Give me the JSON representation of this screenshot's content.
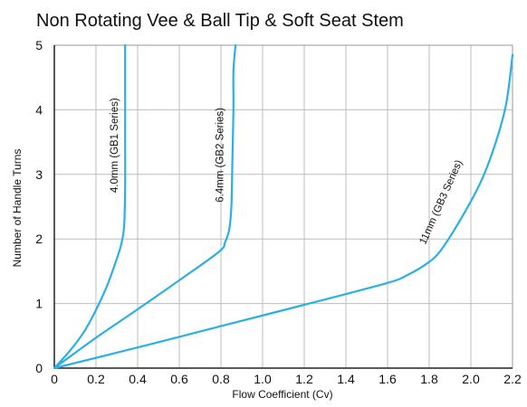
{
  "chart_data": {
    "type": "line",
    "title": "Non Rotating Vee & Ball Tip & Soft Seat Stem",
    "xlabel": "Flow Coefficient (Cv)",
    "ylabel": "Number of Handle Turns",
    "xlim": [
      0,
      2.2
    ],
    "ylim": [
      0,
      5
    ],
    "xticks": [
      "0",
      "0.2",
      "0.4",
      "0.6",
      "0.8",
      "1.0",
      "1.2",
      "1.4",
      "1.6",
      "1.8",
      "2.0",
      "2.2"
    ],
    "yticks": [
      "0",
      "1",
      "2",
      "3",
      "4",
      "5"
    ],
    "grid": true,
    "series_color": "#2bb0e4",
    "series": [
      {
        "name": "4.0mm (GB1 Series)",
        "x": [
          0,
          0.07,
          0.14,
          0.2,
          0.25,
          0.29,
          0.32,
          0.335,
          0.34,
          0.34,
          0.34,
          0.34
        ],
        "y": [
          0,
          0.25,
          0.55,
          0.9,
          1.25,
          1.6,
          1.9,
          2.2,
          2.8,
          3.5,
          4.2,
          5.0
        ]
      },
      {
        "name": "6.4mm (GB2 Series)",
        "x": [
          0,
          0.2,
          0.4,
          0.6,
          0.79,
          0.82,
          0.84,
          0.85,
          0.855,
          0.86,
          0.86,
          0.87
        ],
        "y": [
          0,
          0.47,
          0.91,
          1.36,
          1.8,
          1.95,
          2.15,
          2.5,
          3.2,
          4.0,
          4.6,
          5.0
        ]
      },
      {
        "name": "11mm (GB3 Series)",
        "x": [
          0,
          0.4,
          0.8,
          1.2,
          1.6,
          1.7,
          1.78,
          1.85,
          1.95,
          2.05,
          2.12,
          2.17,
          2.2
        ],
        "y": [
          0,
          0.32,
          0.65,
          0.98,
          1.32,
          1.45,
          1.6,
          1.8,
          2.3,
          2.9,
          3.5,
          4.1,
          4.85
        ]
      }
    ],
    "series_labels": [
      {
        "text": "4.0mm (GB1 Series)",
        "x": 0.305,
        "y": 3.45,
        "angle": -90
      },
      {
        "text": "6.4mm (GB2 Series)",
        "x": 0.81,
        "y": 3.3,
        "angle": -90
      },
      {
        "text": "11mm (GB3 Series)",
        "x": 1.87,
        "y": 2.55,
        "angle": -66
      }
    ]
  }
}
